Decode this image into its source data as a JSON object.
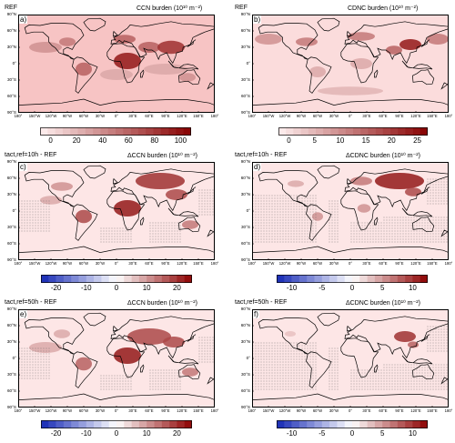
{
  "chart_data": {
    "type": "heatmap",
    "lat_ticks": [
      "90°N",
      "60°N",
      "30°N",
      "0°",
      "30°S",
      "60°S",
      "90°S"
    ],
    "lon_ticks": [
      "180°",
      "150°W",
      "120°W",
      "90°W",
      "60°W",
      "30°W",
      "0°",
      "30°E",
      "60°E",
      "90°E",
      "120°E",
      "150°E",
      "180°"
    ],
    "panels": [
      {
        "tag": "a)",
        "title_left": "REF",
        "title_right": "CCN burden (10¹⁰ m⁻²)",
        "cbar": {
          "type": "sequential",
          "ticks": [
            "0",
            "20",
            "40",
            "60",
            "80",
            "100"
          ],
          "min": 0,
          "max": 100
        }
      },
      {
        "tag": "b)",
        "title_left": "REF",
        "title_right": "CDNC burden (10¹⁰ m⁻²)",
        "cbar": {
          "type": "sequential",
          "ticks": [
            "0",
            "5",
            "10",
            "15",
            "20",
            "25"
          ],
          "min": 0,
          "max": 25
        }
      },
      {
        "tag": "c)",
        "title_left": "tact,ref=10h - REF",
        "title_right": "ΔCCN burden (10¹⁰ m⁻²)",
        "cbar": {
          "type": "diverging",
          "ticks": [
            "-20",
            "-10",
            "0",
            "10",
            "20"
          ],
          "min": -20,
          "max": 20
        }
      },
      {
        "tag": "d)",
        "title_left": "tact,ref=10h - REF",
        "title_right": "ΔCDNC burden (10¹⁰ m⁻²)",
        "cbar": {
          "type": "diverging",
          "ticks": [
            "-10",
            "-5",
            "0",
            "5",
            "10"
          ],
          "min": -10,
          "max": 10
        }
      },
      {
        "tag": "e)",
        "title_left": "tact,ref=50h - REF",
        "title_right": "ΔCCN burden (10¹⁰ m⁻²)",
        "cbar": {
          "type": "diverging",
          "ticks": [
            "-20",
            "-10",
            "0",
            "10",
            "20"
          ],
          "min": -20,
          "max": 20
        }
      },
      {
        "tag": "f)",
        "title_left": "tact,ref=50h - REF",
        "title_right": "ΔCDNC burden (10¹⁰ m⁻²)",
        "cbar": {
          "type": "diverging",
          "ticks": [
            "-10",
            "-5",
            "0",
            "5",
            "10"
          ],
          "min": -10,
          "max": 10
        }
      }
    ]
  }
}
